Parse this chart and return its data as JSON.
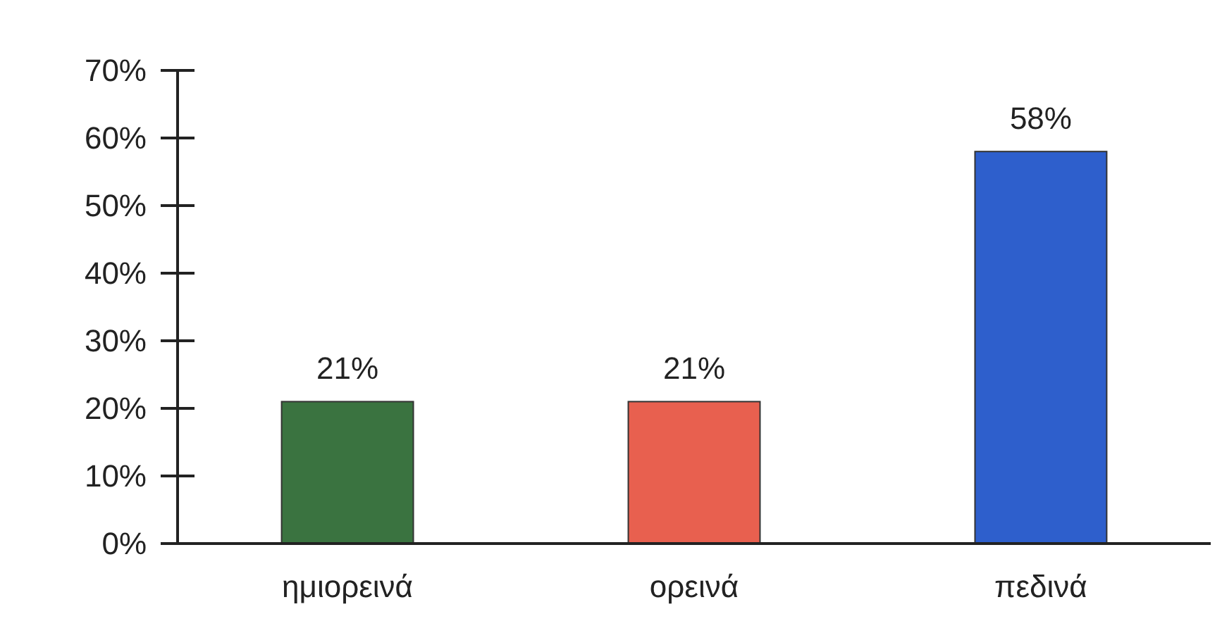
{
  "chart_data": {
    "type": "bar",
    "categories": [
      "ημιορεινά",
      "ορεινά",
      "πεδινά"
    ],
    "values": [
      21,
      21,
      58
    ],
    "colors": [
      "#3a7340",
      "#e8604f",
      "#2e5fcc"
    ],
    "value_labels": [
      "21%",
      "21%",
      "58%"
    ],
    "ylim": [
      0,
      70
    ],
    "yticks": [
      {
        "value": 0,
        "label": "0%"
      },
      {
        "value": 10,
        "label": "10%"
      },
      {
        "value": 20,
        "label": "20%"
      },
      {
        "value": 30,
        "label": "30%"
      },
      {
        "value": 40,
        "label": "40%"
      },
      {
        "value": 50,
        "label": "50%"
      },
      {
        "value": 60,
        "label": "60%"
      },
      {
        "value": 70,
        "label": "70%"
      }
    ],
    "grid": false
  }
}
